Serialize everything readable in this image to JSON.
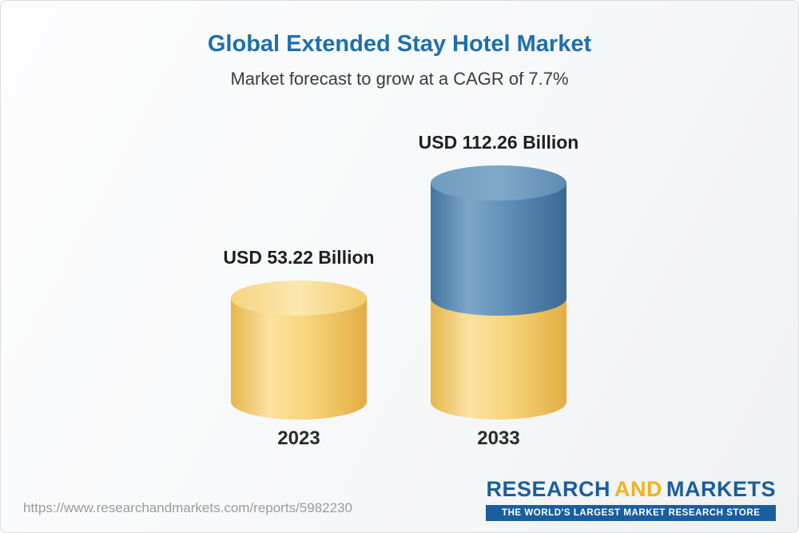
{
  "header": {
    "title": "Global Extended Stay Hotel Market",
    "subtitle": "Market forecast to grow at a CAGR of 7.7%"
  },
  "chart_data": {
    "type": "bar",
    "style": "3d-cylinder",
    "title": "Global Extended Stay Hotel Market",
    "subtitle": "Market forecast to grow at a CAGR of 7.7%",
    "unit": "USD Billion",
    "categories": [
      "2023",
      "2033"
    ],
    "values": [
      53.22,
      112.26
    ],
    "value_labels": [
      "USD 53.22 Billion",
      "USD 112.26 Billion"
    ],
    "cagr": "7.7%",
    "colors": {
      "base_cylinder": "#F5CD68",
      "growth_cylinder": "#567FA9",
      "title_blue": "#1E6FAD",
      "logo_blue": "#1A5E9E",
      "logo_gold": "#F2B21E"
    },
    "axes_visible": false,
    "gridlines": false,
    "legend": "none"
  },
  "footer": {
    "url": "https://www.researchandmarkets.com/reports/5982230",
    "logo": {
      "word_research": "RESEARCH",
      "word_and": "AND",
      "word_markets": "MARKETS",
      "tagline": "THE WORLD'S LARGEST MARKET RESEARCH STORE"
    }
  }
}
